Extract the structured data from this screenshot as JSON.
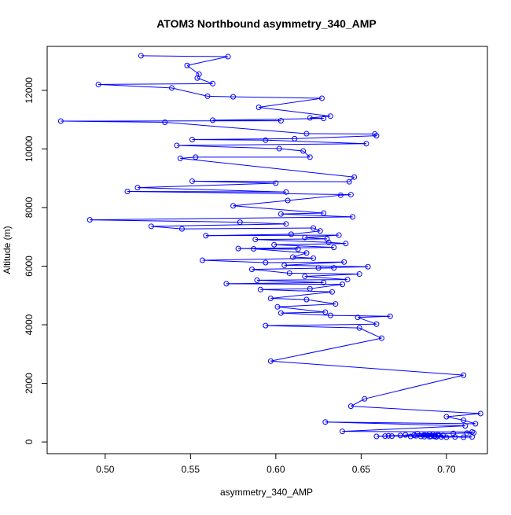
{
  "chart_data": {
    "type": "line",
    "title": "ATOM3 Northbound asymmetry_340_AMP",
    "xlabel": "asymmetry_340_AMP",
    "ylabel": "Altitude (m)",
    "xlim": [
      0.466,
      0.724
    ],
    "ylim": [
      -400,
      13500
    ],
    "x_ticks": [
      0.5,
      0.55,
      0.6,
      0.65,
      0.7
    ],
    "x_tick_labels": [
      "0.50",
      "0.55",
      "0.60",
      "0.65",
      "0.70"
    ],
    "y_ticks": [
      0,
      2000,
      4000,
      6000,
      8000,
      10000,
      12000
    ],
    "y_tick_labels": [
      "0",
      "2000",
      "4000",
      "6000",
      "8000",
      "10000",
      "12000"
    ],
    "grid": false,
    "legend": "none",
    "series": [
      {
        "color": "#0000ff",
        "marker": "open-circle",
        "points": [
          [
            0.521,
            13180
          ],
          [
            0.572,
            13150
          ],
          [
            0.548,
            12850
          ],
          [
            0.555,
            12550
          ],
          [
            0.554,
            12420
          ],
          [
            0.563,
            12230
          ],
          [
            0.496,
            12200
          ],
          [
            0.539,
            12080
          ],
          [
            0.56,
            11800
          ],
          [
            0.575,
            11780
          ],
          [
            0.627,
            11730
          ],
          [
            0.59,
            11420
          ],
          [
            0.632,
            11120
          ],
          [
            0.62,
            11060
          ],
          [
            0.628,
            11040
          ],
          [
            0.563,
            10980
          ],
          [
            0.603,
            10960
          ],
          [
            0.474,
            10950
          ],
          [
            0.535,
            10910
          ],
          [
            0.618,
            10520
          ],
          [
            0.658,
            10510
          ],
          [
            0.659,
            10450
          ],
          [
            0.611,
            10350
          ],
          [
            0.551,
            10320
          ],
          [
            0.594,
            10300
          ],
          [
            0.653,
            10180
          ],
          [
            0.542,
            10120
          ],
          [
            0.602,
            10010
          ],
          [
            0.616,
            9930
          ],
          [
            0.62,
            9720
          ],
          [
            0.553,
            9720
          ],
          [
            0.544,
            9680
          ],
          [
            0.646,
            9040
          ],
          [
            0.643,
            8880
          ],
          [
            0.551,
            8900
          ],
          [
            0.6,
            8830
          ],
          [
            0.519,
            8680
          ],
          [
            0.606,
            8530
          ],
          [
            0.513,
            8550
          ],
          [
            0.644,
            8440
          ],
          [
            0.638,
            8420
          ],
          [
            0.607,
            8240
          ],
          [
            0.575,
            8060
          ],
          [
            0.628,
            7810
          ],
          [
            0.603,
            7780
          ],
          [
            0.645,
            7680
          ],
          [
            0.491,
            7580
          ],
          [
            0.579,
            7500
          ],
          [
            0.606,
            7440
          ],
          [
            0.527,
            7360
          ],
          [
            0.545,
            7270
          ],
          [
            0.622,
            7300
          ],
          [
            0.626,
            7200
          ],
          [
            0.609,
            7090
          ],
          [
            0.559,
            7040
          ],
          [
            0.637,
            7060
          ],
          [
            0.617,
            6980
          ],
          [
            0.63,
            6930
          ],
          [
            0.588,
            6910
          ],
          [
            0.631,
            6810
          ],
          [
            0.641,
            6770
          ],
          [
            0.599,
            6730
          ],
          [
            0.634,
            6640
          ],
          [
            0.578,
            6600
          ],
          [
            0.613,
            6580
          ],
          [
            0.587,
            6590
          ],
          [
            0.618,
            6450
          ],
          [
            0.61,
            6310
          ],
          [
            0.622,
            6270
          ],
          [
            0.557,
            6200
          ],
          [
            0.594,
            6120
          ],
          [
            0.64,
            6140
          ],
          [
            0.605,
            6030
          ],
          [
            0.654,
            5980
          ],
          [
            0.625,
            5940
          ],
          [
            0.634,
            5940
          ],
          [
            0.586,
            5890
          ],
          [
            0.608,
            5760
          ],
          [
            0.649,
            5730
          ],
          [
            0.617,
            5650
          ],
          [
            0.642,
            5540
          ],
          [
            0.589,
            5520
          ],
          [
            0.628,
            5440
          ],
          [
            0.571,
            5400
          ],
          [
            0.639,
            5380
          ],
          [
            0.62,
            5230
          ],
          [
            0.591,
            5200
          ],
          [
            0.633,
            5120
          ],
          [
            0.597,
            4900
          ],
          [
            0.618,
            4860
          ],
          [
            0.635,
            4710
          ],
          [
            0.601,
            4610
          ],
          [
            0.629,
            4430
          ],
          [
            0.603,
            4400
          ],
          [
            0.632,
            4320
          ],
          [
            0.667,
            4290
          ],
          [
            0.648,
            4250
          ],
          [
            0.659,
            4020
          ],
          [
            0.594,
            3970
          ],
          [
            0.649,
            3890
          ],
          [
            0.662,
            3540
          ],
          [
            0.597,
            2760
          ],
          [
            0.71,
            2280
          ],
          [
            0.652,
            1470
          ],
          [
            0.644,
            1220
          ],
          [
            0.72,
            970
          ],
          [
            0.7,
            860
          ],
          [
            0.71,
            740
          ],
          [
            0.717,
            620
          ],
          [
            0.629,
            680
          ],
          [
            0.711,
            550
          ],
          [
            0.639,
            360
          ],
          [
            0.715,
            340
          ],
          [
            0.712,
            300
          ],
          [
            0.716,
            310
          ],
          [
            0.704,
            290
          ],
          [
            0.683,
            280
          ],
          [
            0.69,
            270
          ],
          [
            0.692,
            260
          ],
          [
            0.695,
            250
          ],
          [
            0.687,
            240
          ],
          [
            0.681,
            230
          ],
          [
            0.673,
            220
          ],
          [
            0.666,
            210
          ],
          [
            0.664,
            200
          ],
          [
            0.659,
            190
          ],
          [
            0.668,
            200
          ],
          [
            0.679,
            190
          ],
          [
            0.687,
            180
          ],
          [
            0.69,
            180
          ],
          [
            0.694,
            170
          ],
          [
            0.697,
            170
          ],
          [
            0.7,
            160
          ],
          [
            0.705,
            170
          ],
          [
            0.71,
            160
          ],
          [
            0.715,
            170
          ],
          [
            0.693,
            200
          ],
          [
            0.689,
            220
          ],
          [
            0.685,
            190
          ],
          [
            0.682,
            210
          ],
          [
            0.691,
            190
          ],
          [
            0.698,
            220
          ],
          [
            0.676,
            240
          ],
          [
            0.695,
            210
          ],
          [
            0.693,
            190
          ]
        ]
      }
    ]
  }
}
